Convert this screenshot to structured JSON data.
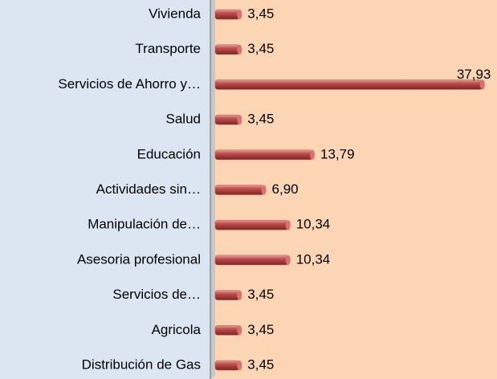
{
  "chart_data": {
    "type": "bar",
    "orientation": "horizontal",
    "categories": [
      "Vivienda",
      "Transporte",
      "Servicios de Ahorro y…",
      "Salud",
      "Educación",
      "Actividades sin…",
      "Manipulación de…",
      "Asesoria profesional",
      "Servicios de…",
      "Agricola",
      "Distribución de Gas"
    ],
    "values": [
      3.45,
      3.45,
      37.93,
      3.45,
      13.79,
      6.9,
      10.34,
      10.34,
      3.45,
      3.45,
      3.45
    ],
    "value_labels": [
      "3,45",
      "3,45",
      "37,93",
      "3,45",
      "13,79",
      "6,90",
      "10,34",
      "10,34",
      "3,45",
      "3,45",
      "3,45"
    ],
    "color": "#c0504d",
    "xlim": [
      0,
      40
    ]
  }
}
